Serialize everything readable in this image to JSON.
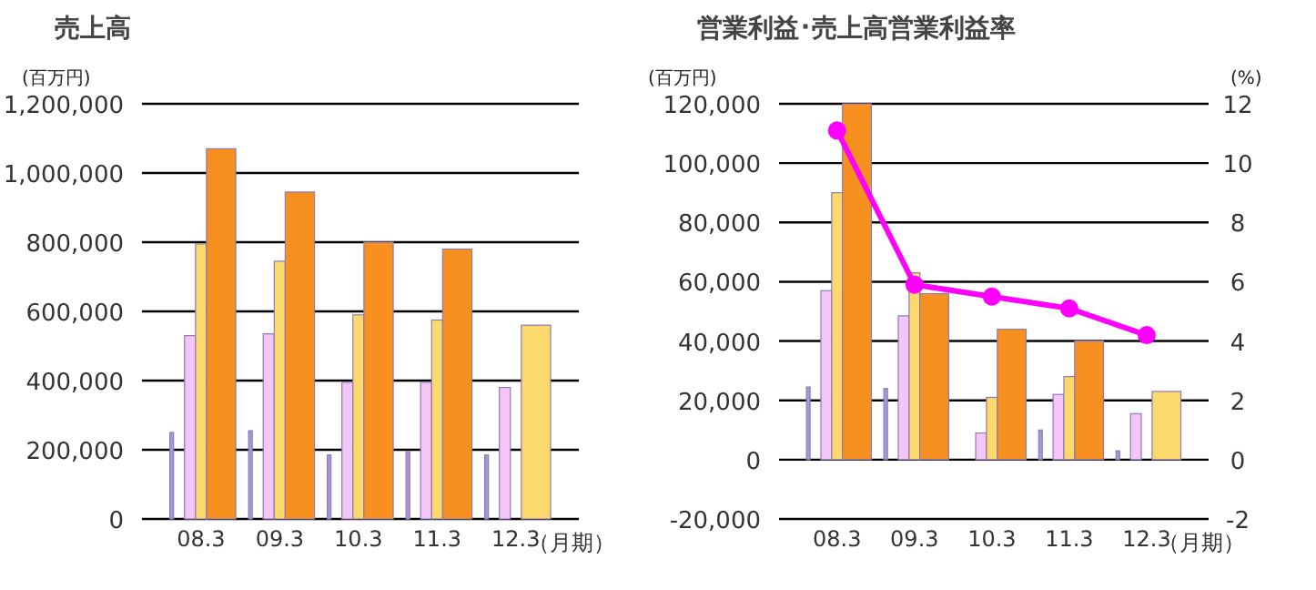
{
  "chart_data": [
    {
      "type": "bar",
      "title": "売上高",
      "ylabel": "(百万円)",
      "xlabel": "（月期）",
      "categories": [
        "08.3",
        "09.3",
        "10.3",
        "11.3",
        "12.3"
      ],
      "series": [
        {
          "color": "#a899d6",
          "values": [
            250000,
            255000,
            185000,
            195000,
            185000
          ]
        },
        {
          "color": "#f3c6f7",
          "values": [
            530000,
            535000,
            395000,
            395000,
            380000
          ]
        },
        {
          "color": "#fdd86a",
          "values": [
            795000,
            745000,
            590000,
            575000,
            null
          ]
        },
        {
          "colors": [
            "#f7901e",
            "#f7901e",
            "#f7901e",
            "#f7901e",
            "#fdd86a"
          ],
          "values": [
            1070000,
            945000,
            800000,
            780000,
            560000
          ]
        }
      ],
      "ylim": [
        0,
        1200000
      ],
      "yticks": [
        0,
        {
          "value": 200000,
          "label": "200,000"
        },
        {
          "value": 400000,
          "label": "400,000"
        },
        {
          "value": 600000,
          "label": "600,000"
        },
        {
          "value": 800000,
          "label": "800,000"
        },
        {
          "value": 1000000,
          "label": "1,000,000"
        },
        {
          "value": 1200000,
          "label": "1,200,000"
        }
      ],
      "grid": "y"
    },
    {
      "type": "bar",
      "title": "営業利益･売上高営業利益率",
      "ylabel": "(百万円)",
      "y2label": "(%)",
      "xlabel": "（月期）",
      "categories": [
        "08.3",
        "09.3",
        "10.3",
        "11.3",
        "12.3"
      ],
      "series": [
        {
          "color": "#a899d6",
          "values": [
            24500,
            24000,
            null,
            10000,
            3000
          ]
        },
        {
          "color": "#f3c6f7",
          "values": [
            57000,
            48500,
            9000,
            22000,
            15500
          ]
        },
        {
          "color": "#fdd86a",
          "values": [
            90000,
            63000,
            21000,
            28000,
            null
          ]
        },
        {
          "colors": [
            "#f7901e",
            "#f7901e",
            "#f7901e",
            "#f7901e",
            "#fdd86a"
          ],
          "values": [
            120000,
            56000,
            44000,
            40000,
            23000
          ]
        },
        {
          "type": "line",
          "axis": "y2",
          "color": "#ff00ff",
          "values": [
            11.1,
            5.9,
            5.5,
            5.1,
            4.2
          ]
        }
      ],
      "marker": "circle",
      "ylim": [
        -20000,
        120000
      ],
      "yticks": [
        {
          "value": -20000,
          "label": "-20,000"
        },
        0,
        {
          "value": 20000,
          "label": "20,000"
        },
        {
          "value": 40000,
          "label": "40,000"
        },
        {
          "value": 60000,
          "label": "60,000"
        },
        {
          "value": 80000,
          "label": "80,000"
        },
        {
          "value": 100000,
          "label": "100,000"
        },
        {
          "value": 120000,
          "label": "120,000"
        }
      ],
      "y2lim": [
        -2,
        12
      ],
      "y2ticks": [
        -2,
        0,
        2,
        4,
        6,
        8,
        10,
        12
      ],
      "grid": "y"
    }
  ]
}
